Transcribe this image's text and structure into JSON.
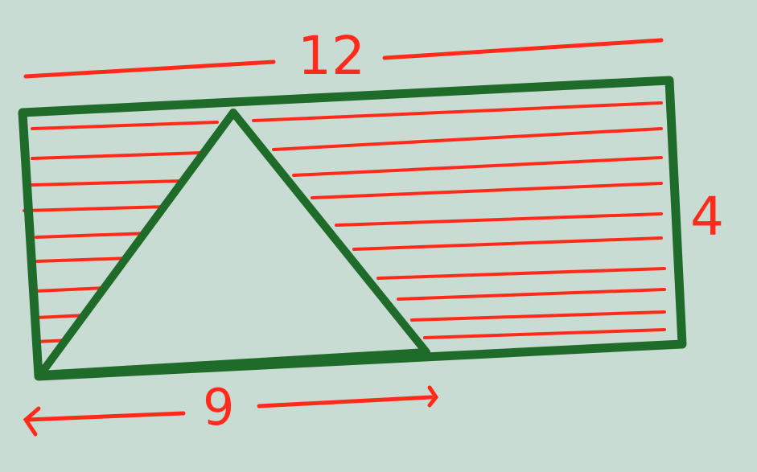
{
  "diagram": {
    "width_label": "12",
    "height_label": "4",
    "base_label": "9",
    "colors": {
      "paper": "#c9dcd3",
      "outline": "#1f6b2a",
      "hatch": "#ff2a1a",
      "label": "#ff2a1a"
    }
  }
}
